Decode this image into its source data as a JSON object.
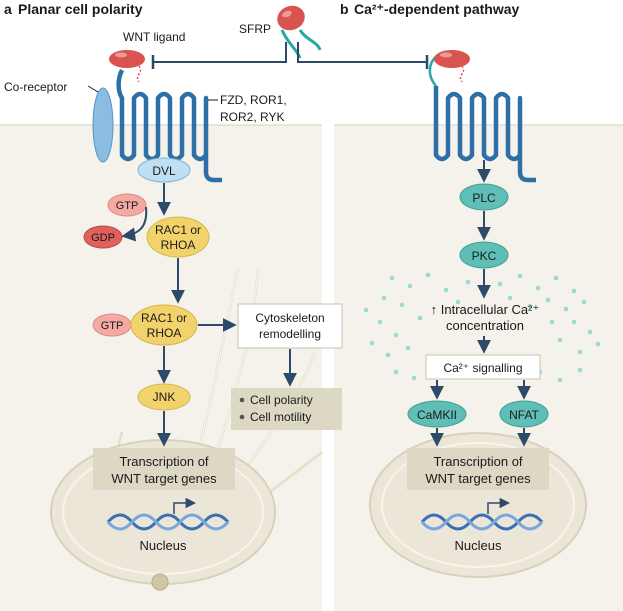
{
  "panel_a": {
    "letter": "a",
    "title": "Planar cell polarity"
  },
  "panel_b": {
    "letter": "b",
    "title": "Ca²⁺-dependent pathway"
  },
  "labels": {
    "wnt_ligand": "WNT ligand",
    "sfrp": "SFRP",
    "co_receptor": "Co-receptor",
    "receptors_line1": "FZD, ROR1,",
    "receptors_line2": "ROR2, RYK"
  },
  "pcp": {
    "dvl": "DVL",
    "gtp_top": "GTP",
    "gdp": "GDP",
    "rac_top_line1": "RAC1 or",
    "rac_top_line2": "RHOA",
    "gtp_mid": "GTP",
    "rac_mid_line1": "RAC1 or",
    "rac_mid_line2": "RHOA",
    "cytoskeleton_line1": "Cytoskeleton",
    "cytoskeleton_line2": "remodelling",
    "cell_polarity": "Cell polarity",
    "cell_motility": "Cell motility",
    "jnk": "JNK",
    "transcription_line1": "Transcription of",
    "transcription_line2": "WNT target genes",
    "nucleus": "Nucleus"
  },
  "ca": {
    "plc": "PLC",
    "pkc": "PKC",
    "intracellular_line1": "↑ Intracellular Ca²⁺",
    "intracellular_line2": "concentration",
    "ca_signalling": "Ca²⁺ signalling",
    "camkii": "CaMKII",
    "nfat": "NFAT",
    "transcription_line1": "Transcription of",
    "transcription_line2": "WNT target genes",
    "nucleus": "Nucleus"
  },
  "colors": {
    "receptor_blue": "#2e6fa6",
    "coreceptor_blue": "#8bbde3",
    "dvl_fill": "#bfe0f4",
    "wnt_red": "#d9534f",
    "gtp_pink": "#f4a9a3",
    "gdp_red": "#e0605d",
    "rac_yellow": "#f2d36b",
    "teal": "#5fbfb6",
    "cytoplasm_tan": "#f4f2ea",
    "box_tan": "#ddd8c4",
    "nucleus_fill": "#ebe6d8",
    "dna_blue": "#3a6fb0"
  }
}
